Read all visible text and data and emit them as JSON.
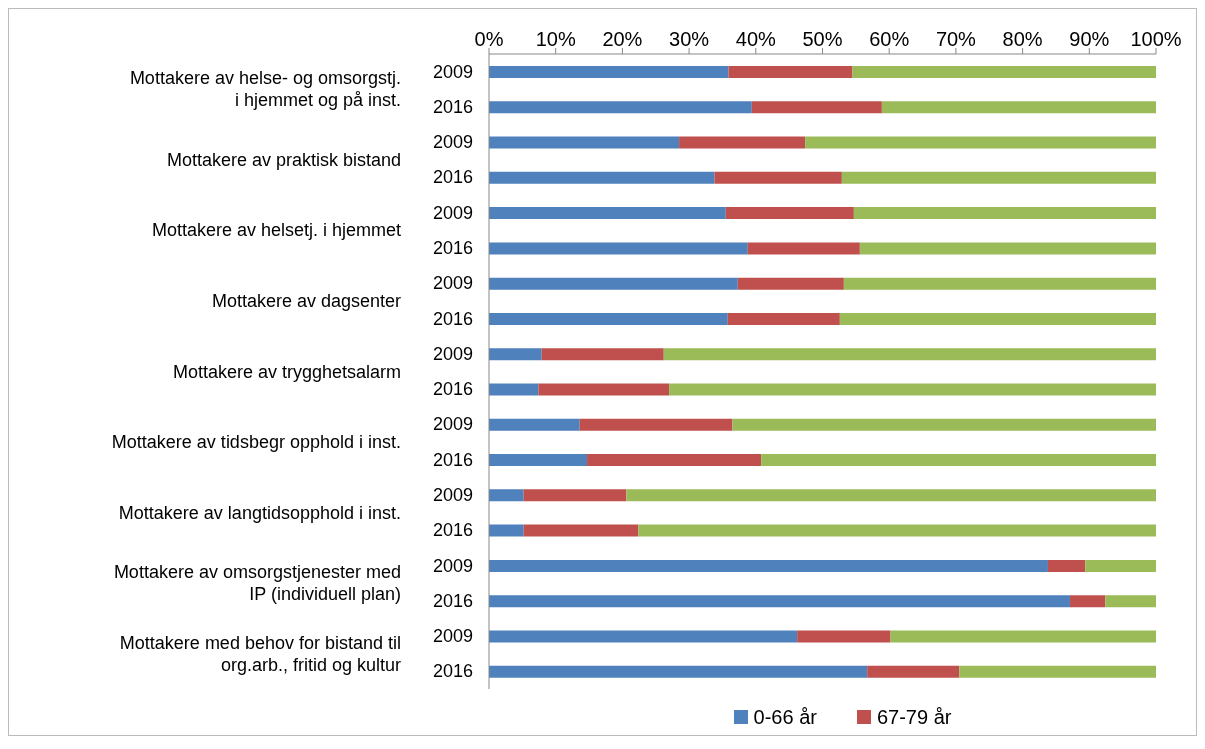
{
  "chart_data": {
    "type": "bar",
    "orientation": "horizontal",
    "stacked": true,
    "categories": [
      "2009",
      "2016",
      "2009",
      "2016",
      "2009",
      "2016",
      "2009",
      "2016",
      "2009",
      "2016",
      "2009",
      "2016",
      "2009",
      "2016",
      "2009",
      "2016",
      "2009",
      "2016"
    ],
    "annotations": [
      "Mottakere av helse- og omsorgstj.\ni hjemmet og på inst.",
      "Mottakere av praktisk bistand",
      "Mottakere av helsetj. i hjemmet",
      "Mottakere av dagsenter",
      "Mottakere av trygghetsalarm",
      "Mottakere av tidsbegr opphold i inst.",
      "Mottakere av langtidsopphold i inst.",
      "Mottakere av omsorgstjenester med\nIP (individuell plan)",
      "Mottakere med behov for bistand til\norg.arb., fritid og kultur"
    ],
    "series": [
      {
        "name": "0-66 år",
        "color": "#4f81bd",
        "values": [
          35.9,
          39.4,
          28.5,
          33.8,
          35.5,
          38.8,
          37.3,
          35.8,
          7.9,
          7.4,
          13.6,
          14.7,
          5.2,
          5.2,
          83.8,
          87.1,
          46.2,
          56.7
        ]
      },
      {
        "name": "67-79 år",
        "color": "#c0504d",
        "values": [
          18.6,
          19.5,
          18.9,
          19.1,
          19.2,
          16.8,
          15.9,
          16.8,
          18.3,
          19.6,
          22.9,
          26.1,
          15.4,
          17.2,
          5.6,
          5.3,
          14.0,
          13.8
        ]
      },
      {
        "color": "#9bbb59",
        "values": [
          45.5,
          41.1,
          52.6,
          47.1,
          45.3,
          44.4,
          46.8,
          47.4,
          73.8,
          73.0,
          63.5,
          59.2,
          79.4,
          77.6,
          10.6,
          7.6,
          39.8,
          29.5
        ]
      }
    ],
    "xlim": [
      0,
      100
    ],
    "xticks": [
      {
        "value": 0,
        "label": "0%"
      },
      {
        "value": 10,
        "label": "10%"
      },
      {
        "value": 20,
        "label": "20%"
      },
      {
        "value": 30,
        "label": "30%"
      },
      {
        "value": 40,
        "label": "40%"
      },
      {
        "value": 50,
        "label": "50%"
      },
      {
        "value": 60,
        "label": "60%"
      },
      {
        "value": 70,
        "label": "70%"
      },
      {
        "value": 80,
        "label": "80%"
      },
      {
        "value": 90,
        "label": "90%"
      },
      {
        "value": 100,
        "label": "100%"
      }
    ],
    "legend": "bottom"
  }
}
